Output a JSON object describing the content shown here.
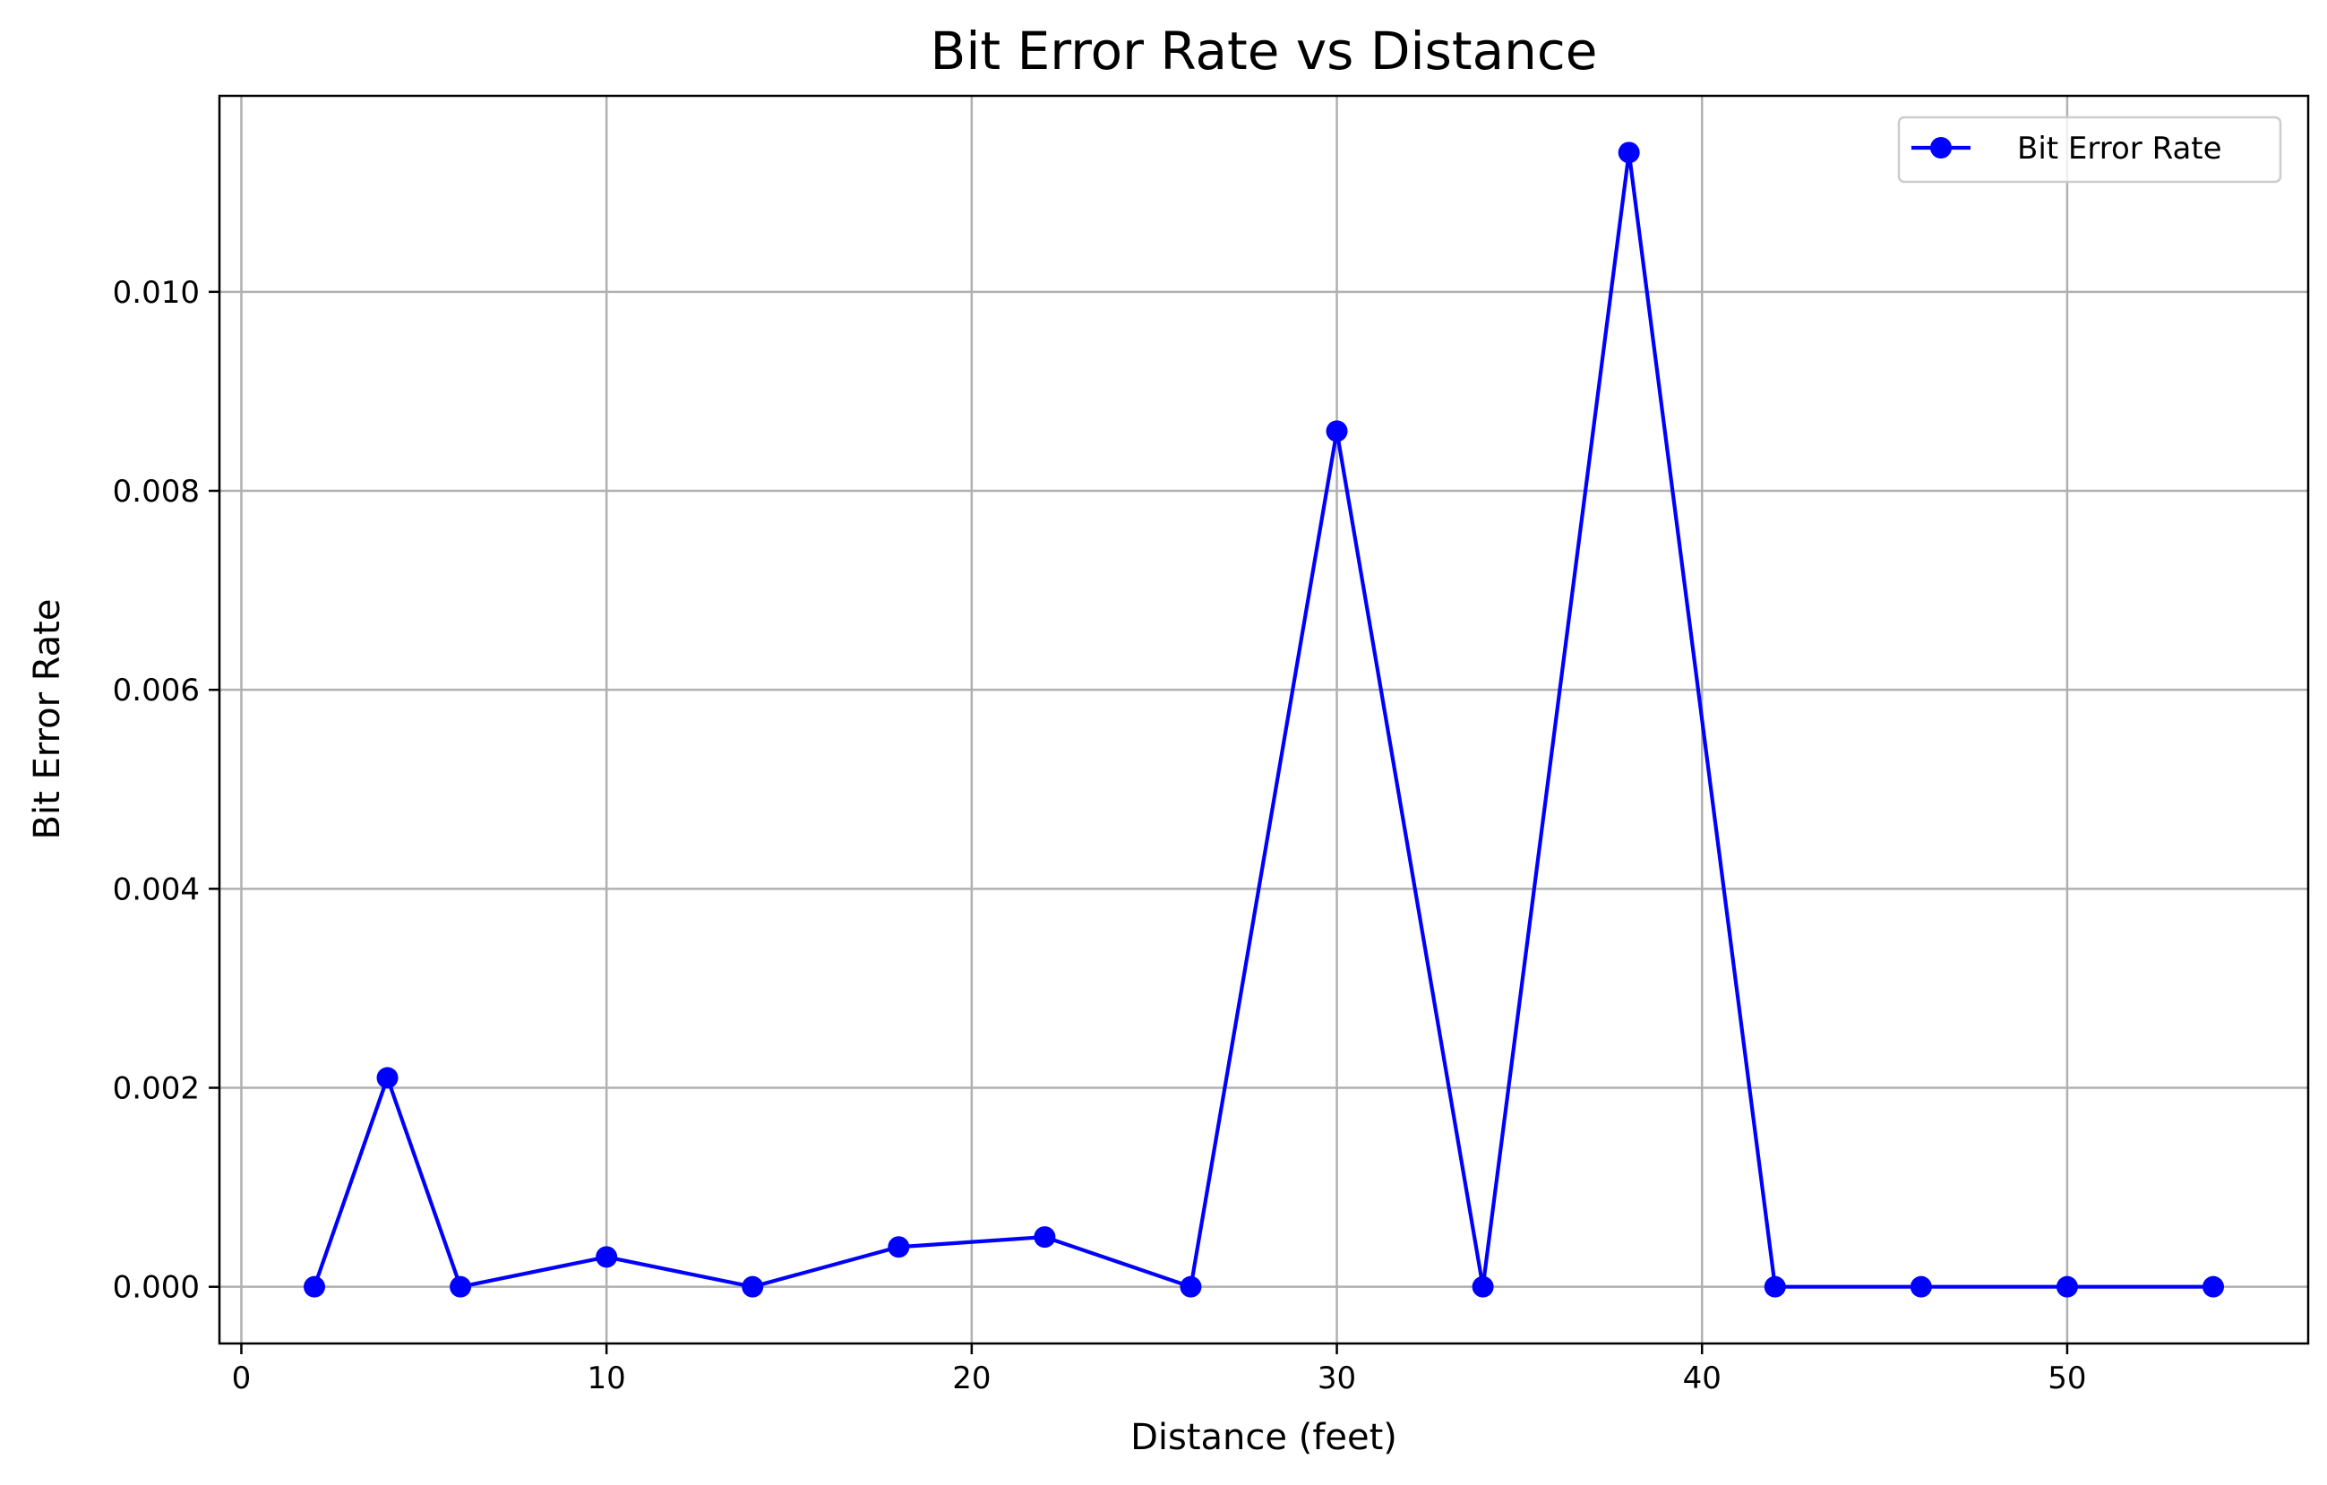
{
  "chart_data": {
    "type": "line",
    "title": "Bit Error Rate vs Distance",
    "xlabel": "Distance (feet)",
    "ylabel": "Bit Error Rate",
    "xlim": [
      -0.6,
      56.6
    ],
    "ylim": [
      -0.00057,
      0.01197
    ],
    "x_ticks": [
      0,
      10,
      20,
      30,
      40,
      50
    ],
    "x_tick_labels": [
      "0",
      "10",
      "20",
      "30",
      "40",
      "50"
    ],
    "y_ticks": [
      0.0,
      0.002,
      0.004,
      0.006,
      0.008,
      0.01
    ],
    "y_tick_labels": [
      "0.000",
      "0.002",
      "0.004",
      "0.006",
      "0.008",
      "0.010"
    ],
    "grid": true,
    "legend_position": "top-right",
    "series": [
      {
        "name": "Bit Error Rate",
        "color": "#0000ff",
        "marker": "circle",
        "x": [
          2,
          4,
          6,
          10,
          14,
          18,
          22,
          26,
          30,
          34,
          38,
          42,
          46,
          50,
          54
        ],
        "values": [
          0.0,
          0.0021,
          0.0,
          0.0003,
          0.0,
          0.0004,
          0.0005,
          0.0,
          0.0086,
          0.0,
          0.0114,
          0.0,
          0.0,
          0.0,
          0.0
        ]
      }
    ]
  }
}
